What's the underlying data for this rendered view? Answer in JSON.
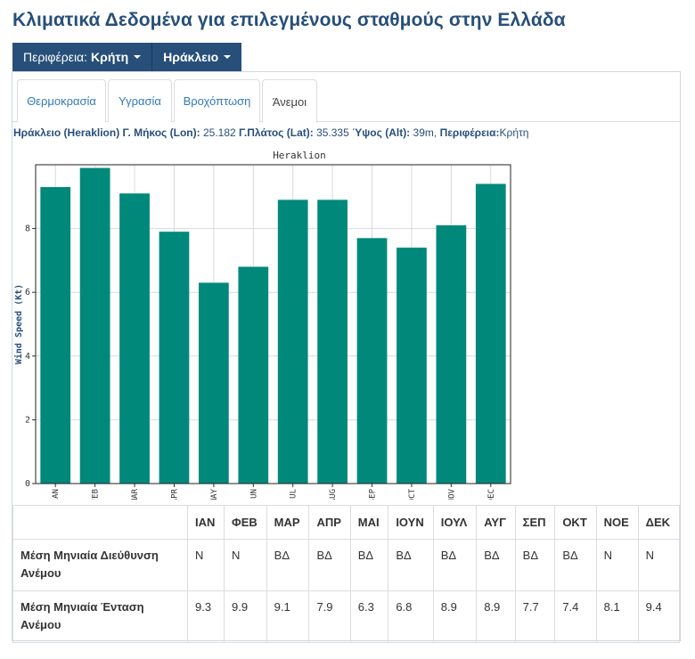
{
  "page": {
    "title": "Κλιματικά Δεδομένα για επιλεγμένους σταθμούς στην Ελλάδα"
  },
  "selectors": {
    "region_label": "Περιφέρεια:",
    "region_value": "Κρήτη",
    "station_value": "Ηράκλειο"
  },
  "tabs": [
    {
      "label": "Θερμοκρασία",
      "active": false
    },
    {
      "label": "Υγρασία",
      "active": false
    },
    {
      "label": "Βροχόπτωση",
      "active": false
    },
    {
      "label": "Άνεμοι",
      "active": true
    }
  ],
  "station": {
    "name": "Ηράκλειο (Heraklion)",
    "lon_label": "Γ. Μήκος (Lon):",
    "lon_value": "25.182",
    "lat_label": "Γ.Πλάτος (Lat):",
    "lat_value": "35.335",
    "alt_label": "Ύψος (Alt):",
    "alt_value": "39m,",
    "region_label": "Περιφέρεια:",
    "region_value": "Κρήτη"
  },
  "chart_data": {
    "type": "bar",
    "title": "Heraklion",
    "xlabel": "",
    "ylabel": "Wind Speed (Kt)",
    "categories": [
      "JAN",
      "FEB",
      "MAR",
      "APR",
      "MAY",
      "JUN",
      "JUL",
      "AUG",
      "SEP",
      "OCT",
      "NOV",
      "DEC"
    ],
    "values": [
      9.3,
      9.9,
      9.1,
      7.9,
      6.3,
      6.8,
      8.9,
      8.9,
      7.7,
      7.4,
      8.1,
      9.4
    ],
    "ylim": [
      0,
      10
    ],
    "yticks": [
      0,
      2,
      4,
      6,
      8
    ],
    "grid": true,
    "bar_color": "#00897b"
  },
  "table": {
    "months": [
      "ΙΑΝ",
      "ΦΕΒ",
      "ΜΑΡ",
      "ΑΠΡ",
      "ΜΑΙ",
      "ΙΟΥΝ",
      "ΙΟΥΛ",
      "ΑΥΓ",
      "ΣΕΠ",
      "ΟΚΤ",
      "ΝΟΕ",
      "ΔΕΚ"
    ],
    "rows": [
      {
        "label": "Μέση Μηνιαία Διεύθυνση Ανέμου",
        "values": [
          "Ν",
          "Ν",
          "ΒΔ",
          "ΒΔ",
          "ΒΔ",
          "ΒΔ",
          "ΒΔ",
          "ΒΔ",
          "ΒΔ",
          "ΒΔ",
          "Ν",
          "Ν"
        ]
      },
      {
        "label": "Μέση Μηνιαία Ένταση Ανέμου",
        "values": [
          "9.3",
          "9.9",
          "9.1",
          "7.9",
          "6.3",
          "6.8",
          "8.9",
          "8.9",
          "7.7",
          "7.4",
          "8.1",
          "9.4"
        ]
      }
    ]
  }
}
